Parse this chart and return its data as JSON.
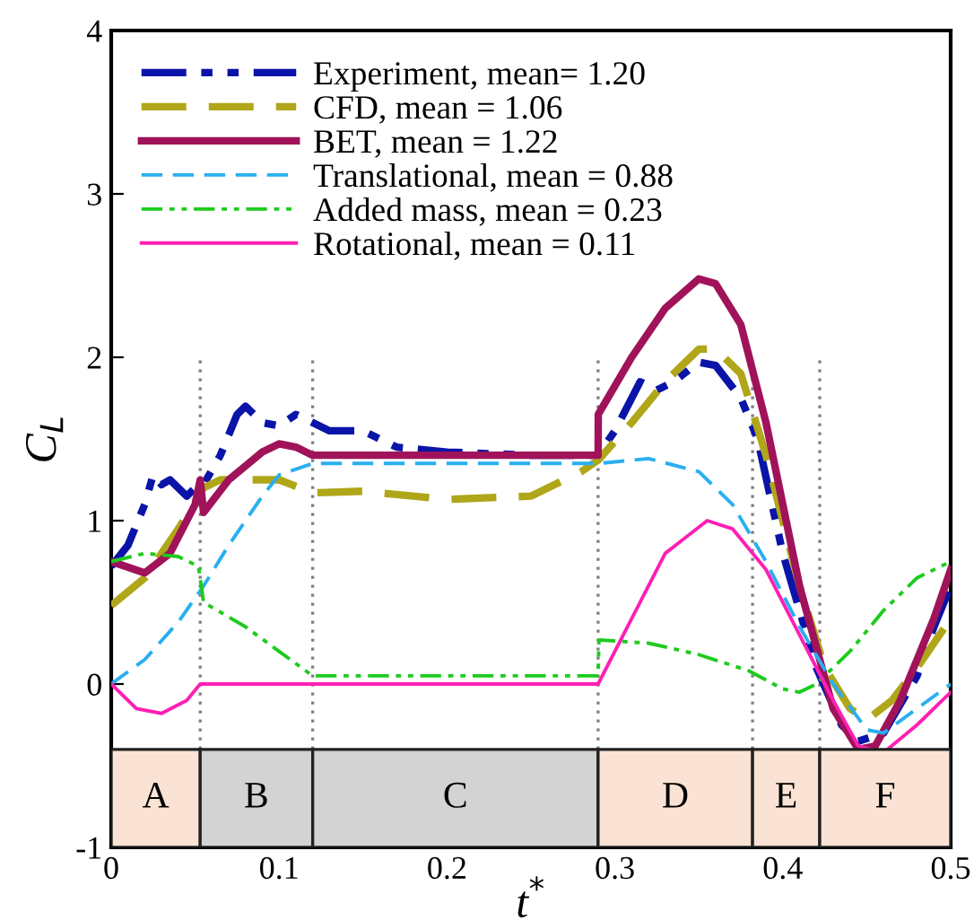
{
  "chart_data": {
    "type": "line",
    "xlabel": "t$^{*}$",
    "ylabel": "C$_{L}$",
    "xlim": [
      0,
      0.5
    ],
    "ylim": [
      -1,
      4
    ],
    "xticks": [
      0,
      0.1,
      0.2,
      0.3,
      0.4,
      0.5
    ],
    "yticks": [
      -1,
      0,
      1,
      2,
      3,
      4
    ],
    "grid": false,
    "legend": "top left",
    "series": [
      {
        "name": "Experiment, mean= 1.20",
        "color": "#0a14a8",
        "line_style": "dashdotdot",
        "x": [
          0,
          0.01,
          0.02,
          0.025,
          0.03,
          0.035,
          0.045,
          0.05,
          0.055,
          0.065,
          0.075,
          0.08,
          0.09,
          0.1,
          0.11,
          0.12,
          0.13,
          0.15,
          0.17,
          0.2,
          0.25,
          0.28,
          0.29,
          0.3,
          0.315,
          0.325,
          0.335,
          0.35,
          0.36,
          0.375,
          0.385,
          0.4,
          0.42,
          0.435,
          0.445,
          0.46,
          0.48,
          0.49,
          0.5
        ],
        "values": [
          0.72,
          0.85,
          1.1,
          1.28,
          1.22,
          1.25,
          1.15,
          1.2,
          1.22,
          1.4,
          1.65,
          1.7,
          1.6,
          1.58,
          1.65,
          1.6,
          1.55,
          1.55,
          1.45,
          1.42,
          1.4,
          1.4,
          1.4,
          1.55,
          1.85,
          1.8,
          1.85,
          1.97,
          1.95,
          1.75,
          1.5,
          0.8,
          0.1,
          -0.25,
          -0.35,
          -0.3,
          0.05,
          0.35,
          0.6
        ]
      },
      {
        "name": "CFD, mean = 1.06",
        "color": "#b0a619",
        "line_style": "dashed",
        "x": [
          0,
          0.02,
          0.04,
          0.055,
          0.065,
          0.09,
          0.1,
          0.12,
          0.15,
          0.2,
          0.25,
          0.28,
          0.29,
          0.31,
          0.33,
          0.35,
          0.36,
          0.375,
          0.39,
          0.41,
          0.425,
          0.44,
          0.45,
          0.465,
          0.48,
          0.5
        ],
        "values": [
          0.48,
          0.65,
          0.95,
          1.2,
          1.25,
          1.25,
          1.25,
          1.17,
          1.18,
          1.13,
          1.15,
          1.3,
          1.37,
          1.6,
          1.85,
          2.05,
          2.05,
          1.9,
          1.4,
          0.6,
          0.1,
          -0.15,
          -0.22,
          -0.1,
          0.1,
          0.4
        ]
      },
      {
        "name": "BET, mean = 1.22",
        "color": "#a0135a",
        "line_style": "solid",
        "x": [
          0,
          0.02,
          0.035,
          0.05,
          0.053,
          0.055,
          0.07,
          0.09,
          0.1,
          0.11,
          0.12,
          0.29,
          0.2901,
          0.31,
          0.33,
          0.35,
          0.36,
          0.375,
          0.39,
          0.41,
          0.43,
          0.445,
          0.455,
          0.47,
          0.49,
          0.5
        ],
        "values": [
          0.75,
          0.68,
          0.8,
          1.1,
          1.25,
          1.05,
          1.25,
          1.42,
          1.47,
          1.45,
          1.4,
          1.4,
          1.65,
          2.0,
          2.3,
          2.48,
          2.45,
          2.2,
          1.6,
          0.6,
          -0.15,
          -0.4,
          -0.38,
          -0.1,
          0.4,
          0.7
        ]
      },
      {
        "name": "Translational, mean = 0.88",
        "color": "#29aff0",
        "line_style": "dashed",
        "x": [
          0,
          0.02,
          0.04,
          0.055,
          0.07,
          0.09,
          0.1,
          0.12,
          0.29,
          0.32,
          0.35,
          0.37,
          0.39,
          0.41,
          0.43,
          0.45,
          0.46,
          0.48,
          0.5
        ],
        "values": [
          0,
          0.15,
          0.38,
          0.6,
          0.85,
          1.15,
          1.28,
          1.35,
          1.35,
          1.38,
          1.3,
          1.1,
          0.75,
          0.35,
          0,
          -0.28,
          -0.3,
          -0.15,
          0
        ]
      },
      {
        "name": "Added mass, mean = 0.23",
        "color": "#1ecb1e",
        "line_style": "dashdotdot",
        "x": [
          0,
          0.02,
          0.04,
          0.052,
          0.055,
          0.08,
          0.1,
          0.12,
          0.29,
          0.2905,
          0.32,
          0.35,
          0.38,
          0.4,
          0.41,
          0.42,
          0.44,
          0.46,
          0.48,
          0.5
        ],
        "values": [
          0.75,
          0.8,
          0.78,
          0.72,
          0.5,
          0.35,
          0.2,
          0.05,
          0.05,
          0.27,
          0.25,
          0.18,
          0.08,
          -0.03,
          -0.05,
          0,
          0.2,
          0.45,
          0.65,
          0.75
        ]
      },
      {
        "name": "Rotational, mean = 0.11",
        "color": "#ff1fb4",
        "line_style": "solid",
        "x": [
          0,
          0.015,
          0.03,
          0.045,
          0.053,
          0.29,
          0.31,
          0.33,
          0.355,
          0.37,
          0.39,
          0.41,
          0.43,
          0.445,
          0.46,
          0.48,
          0.5
        ],
        "values": [
          0,
          -0.15,
          -0.18,
          -0.1,
          0,
          0,
          0.4,
          0.8,
          1.0,
          0.95,
          0.7,
          0.3,
          -0.1,
          -0.38,
          -0.42,
          -0.25,
          -0.05
        ]
      }
    ],
    "ref_lines": [
      {
        "axis": "x",
        "value": 0.053,
        "line_style": "dotted",
        "color": "#808080"
      },
      {
        "axis": "x",
        "value": 0.12,
        "line_style": "dotted",
        "color": "#808080"
      },
      {
        "axis": "x",
        "value": 0.29,
        "line_style": "dotted",
        "color": "#808080"
      },
      {
        "axis": "x",
        "value": 0.382,
        "line_style": "dotted",
        "color": "#808080"
      },
      {
        "axis": "x",
        "value": 0.422,
        "line_style": "dotted",
        "color": "#808080"
      }
    ],
    "bands": [
      {
        "axis": "x",
        "from": 0,
        "to": 0.053,
        "label": "A",
        "color": "#fae3d5"
      },
      {
        "axis": "x",
        "from": 0.053,
        "to": 0.12,
        "label": "B",
        "color": "#d3d3d3"
      },
      {
        "axis": "x",
        "from": 0.12,
        "to": 0.29,
        "label": "C",
        "color": "#d3d3d3"
      },
      {
        "axis": "x",
        "from": 0.29,
        "to": 0.382,
        "label": "D",
        "color": "#fae3d5"
      },
      {
        "axis": "x",
        "from": 0.382,
        "to": 0.422,
        "label": "E",
        "color": "#fae3d5"
      },
      {
        "axis": "x",
        "from": 0.422,
        "to": 0.5,
        "label": "F",
        "color": "#fae3d5"
      }
    ]
  }
}
